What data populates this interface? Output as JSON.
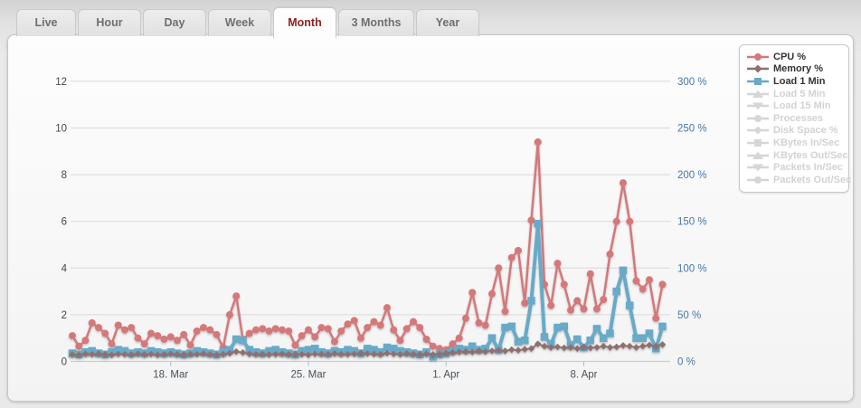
{
  "tabs": {
    "items": [
      {
        "label": "Live",
        "active": false
      },
      {
        "label": "Hour",
        "active": false
      },
      {
        "label": "Day",
        "active": false
      },
      {
        "label": "Week",
        "active": false
      },
      {
        "label": "Month",
        "active": true
      },
      {
        "label": "3 Months",
        "active": false
      },
      {
        "label": "Year",
        "active": false
      }
    ]
  },
  "colors": {
    "cpu": "#d4787a",
    "memory": "#8f6f6f",
    "load1": "#68aac8",
    "inactive": "#d6d6d6",
    "grid": "#d9d9d9",
    "axis_line": "#bed0dc",
    "left_label": "#484848",
    "right_label": "#4878a8",
    "x_label": "#49525b",
    "active_tab_text": "#8e2023"
  },
  "chart_data": {
    "type": "line",
    "title": "",
    "xlabel": "",
    "ylabel_left": "",
    "ylabel_right": "",
    "grid": "horizontal",
    "legend_position": "top-right",
    "point_count": 91,
    "x_ticks": [
      {
        "label": "18. Mar",
        "index": 15
      },
      {
        "label": "25. Mar",
        "index": 36
      },
      {
        "label": "1. Apr",
        "index": 57
      },
      {
        "label": "8. Apr",
        "index": 78
      }
    ],
    "y_axis_left": {
      "min": 0,
      "max": 12,
      "tick_labels": [
        "0",
        "2",
        "4",
        "6",
        "8",
        "10",
        "12"
      ]
    },
    "y_axis_right": {
      "min": 0,
      "max": 300,
      "tick_labels": [
        "0 %",
        "50 %",
        "100 %",
        "150 %",
        "200 %",
        "250 %",
        "300 %"
      ]
    },
    "series": [
      {
        "name": "CPU %",
        "color": "#d4787a",
        "marker": "circle",
        "line_width": 2.5,
        "values": [
          1.1,
          0.65,
          0.9,
          1.65,
          1.45,
          1.2,
          0.75,
          1.55,
          1.35,
          1.45,
          1.0,
          0.75,
          1.2,
          1.1,
          0.95,
          1.05,
          0.9,
          1.15,
          0.7,
          1.3,
          1.45,
          1.35,
          1.15,
          0.6,
          2.0,
          2.8,
          0.95,
          1.2,
          1.35,
          1.4,
          1.3,
          1.4,
          1.35,
          1.3,
          0.7,
          1.1,
          1.35,
          1.05,
          1.45,
          1.4,
          0.85,
          1.3,
          1.6,
          1.75,
          1.0,
          1.45,
          1.7,
          1.55,
          2.3,
          1.35,
          0.9,
          1.4,
          1.7,
          1.45,
          0.95,
          0.65,
          0.55,
          0.5,
          0.75,
          1.0,
          1.85,
          2.95,
          1.65,
          1.55,
          2.9,
          4.0,
          2.15,
          4.45,
          4.75,
          2.5,
          6.05,
          9.4,
          3.3,
          2.4,
          4.2,
          3.3,
          2.2,
          2.6,
          2.25,
          3.75,
          2.25,
          2.65,
          4.6,
          6.0,
          7.65,
          6.0,
          3.45,
          3.1,
          3.5,
          1.85,
          3.3
        ]
      },
      {
        "name": "Load 1 Min",
        "color": "#68aac8",
        "marker": "square",
        "line_width": 4,
        "values": [
          0.35,
          0.3,
          0.4,
          0.45,
          0.35,
          0.3,
          0.4,
          0.5,
          0.45,
          0.35,
          0.4,
          0.35,
          0.45,
          0.4,
          0.35,
          0.4,
          0.35,
          0.3,
          0.35,
          0.45,
          0.4,
          0.35,
          0.3,
          0.4,
          0.5,
          0.95,
          0.9,
          0.5,
          0.4,
          0.35,
          0.45,
          0.5,
          0.4,
          0.35,
          0.3,
          0.45,
          0.5,
          0.55,
          0.4,
          0.35,
          0.45,
          0.4,
          0.5,
          0.45,
          0.35,
          0.55,
          0.5,
          0.4,
          0.6,
          0.55,
          0.45,
          0.4,
          0.35,
          0.3,
          0.4,
          0.2,
          0.3,
          0.35,
          0.45,
          0.55,
          0.5,
          0.65,
          0.5,
          0.55,
          1.0,
          0.5,
          1.45,
          1.5,
          0.85,
          0.9,
          2.6,
          5.9,
          1.05,
          0.75,
          1.45,
          1.5,
          0.7,
          0.95,
          0.6,
          0.9,
          1.4,
          1.0,
          1.2,
          3.0,
          3.9,
          2.4,
          1.0,
          1.0,
          1.2,
          0.55,
          1.5
        ]
      },
      {
        "name": "Memory %",
        "color": "#8f6f6f",
        "marker": "diamond",
        "line_width": 2,
        "values": [
          0.3,
          0.28,
          0.32,
          0.3,
          0.33,
          0.3,
          0.28,
          0.31,
          0.3,
          0.29,
          0.32,
          0.3,
          0.31,
          0.28,
          0.3,
          0.32,
          0.3,
          0.29,
          0.31,
          0.3,
          0.33,
          0.3,
          0.28,
          0.3,
          0.35,
          0.42,
          0.38,
          0.32,
          0.3,
          0.31,
          0.29,
          0.3,
          0.32,
          0.3,
          0.31,
          0.3,
          0.28,
          0.32,
          0.31,
          0.3,
          0.33,
          0.31,
          0.3,
          0.32,
          0.35,
          0.33,
          0.31,
          0.3,
          0.35,
          0.32,
          0.3,
          0.33,
          0.31,
          0.3,
          0.32,
          0.3,
          0.31,
          0.35,
          0.38,
          0.4,
          0.42,
          0.4,
          0.45,
          0.42,
          0.45,
          0.48,
          0.45,
          0.5,
          0.48,
          0.52,
          0.55,
          0.75,
          0.65,
          0.6,
          0.62,
          0.58,
          0.6,
          0.55,
          0.62,
          0.58,
          0.6,
          0.65,
          0.6,
          0.62,
          0.68,
          0.65,
          0.6,
          0.65,
          0.7,
          0.65,
          0.72
        ]
      }
    ],
    "legend": [
      {
        "label": "CPU %",
        "marker": "circle",
        "active": true,
        "color": "#d4787a"
      },
      {
        "label": "Memory %",
        "marker": "diamond",
        "active": true,
        "color": "#8f6f6f"
      },
      {
        "label": "Load 1 Min",
        "marker": "square",
        "active": true,
        "color": "#68aac8"
      },
      {
        "label": "Load 5 Min",
        "marker": "triangle-up",
        "active": false,
        "color": "#d6d6d6"
      },
      {
        "label": "Load 15 Min",
        "marker": "triangle-down",
        "active": false,
        "color": "#d6d6d6"
      },
      {
        "label": "Processes",
        "marker": "circle",
        "active": false,
        "color": "#d6d6d6"
      },
      {
        "label": "Disk Space %",
        "marker": "diamond",
        "active": false,
        "color": "#d6d6d6"
      },
      {
        "label": "KBytes In/Sec",
        "marker": "square",
        "active": false,
        "color": "#d6d6d6"
      },
      {
        "label": "KBytes Out/Sec",
        "marker": "triangle-up",
        "active": false,
        "color": "#d6d6d6"
      },
      {
        "label": "Packets In/Sec",
        "marker": "triangle-down",
        "active": false,
        "color": "#d6d6d6"
      },
      {
        "label": "Packets Out/Sec",
        "marker": "circle",
        "active": false,
        "color": "#d6d6d6"
      }
    ]
  }
}
